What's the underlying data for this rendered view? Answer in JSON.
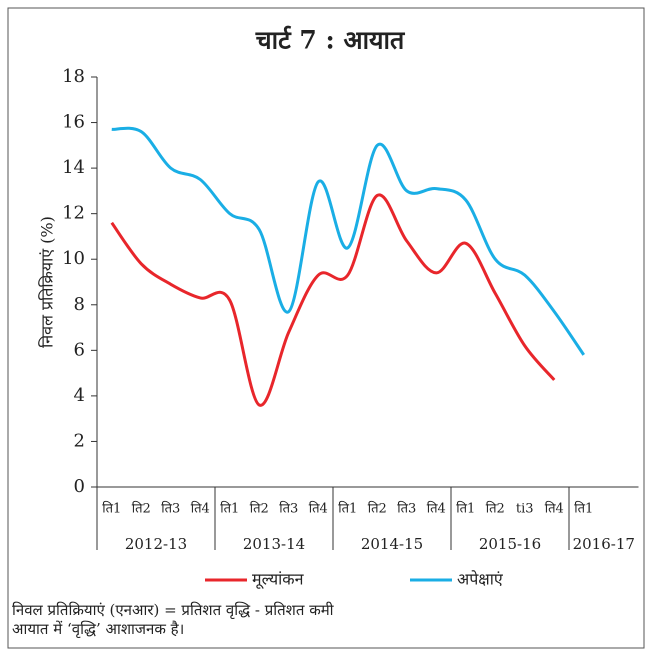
{
  "chart_data": {
    "type": "line",
    "title": "चार्ट 7 : आयात",
    "ylabel": "निवल प्रतिक्रियाएं (%)",
    "groups": [
      {
        "name": "2012-13",
        "categories": [
          "ति1",
          "ति2",
          "ति3",
          "ति4"
        ]
      },
      {
        "name": "2013-14",
        "categories": [
          "ति1",
          "ति2",
          "ति3",
          "ति4"
        ]
      },
      {
        "name": "2014-15",
        "categories": [
          "ति1",
          "ति2",
          "ति3",
          "ति4"
        ]
      },
      {
        "name": "2015-16",
        "categories": [
          "ति1",
          "ति2",
          "ti3",
          "ति4"
        ]
      },
      {
        "name": "2016-17",
        "categories": [
          "ति1"
        ]
      }
    ],
    "series": [
      {
        "name": "मूल्यांकन",
        "color": "#e8262b",
        "values": [
          11.6,
          9.8,
          8.9,
          8.3,
          8.2,
          3.6,
          6.8,
          9.3,
          9.3,
          12.8,
          10.8,
          9.4,
          10.7,
          8.5,
          6.2,
          4.7,
          null
        ]
      },
      {
        "name": "अपेक्षाएं",
        "color": "#1aaee5",
        "values": [
          15.7,
          15.6,
          14.0,
          13.5,
          12.0,
          11.3,
          7.7,
          13.4,
          10.5,
          15.0,
          13.0,
          13.1,
          12.6,
          10.0,
          9.3,
          7.7,
          5.8
        ]
      }
    ],
    "ylim": [
      0,
      18
    ],
    "yticks": [
      0,
      2,
      4,
      6,
      8,
      10,
      12,
      14,
      16,
      18
    ],
    "notes": [
      "निवल प्रतिक्रियाएं (एनआर) = प्रतिशत वृद्धि - प्रतिशत कमी",
      "आयात में ‘वृद्धि’ आशाजनक है।"
    ]
  }
}
